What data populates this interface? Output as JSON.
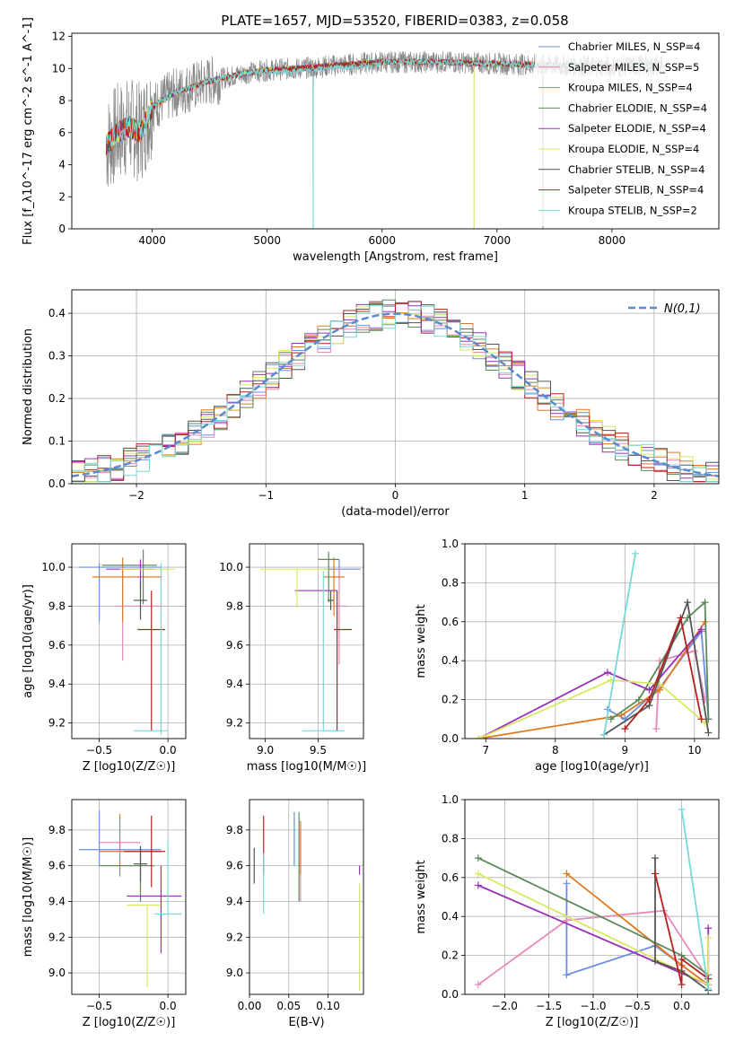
{
  "title": "PLATE=1657, MJD=53520, FIBERID=0383, z=0.058",
  "colors": {
    "models": [
      "#6a8ee0",
      "#e888b8",
      "#e07a20",
      "#5a8a5a",
      "#9a30b8",
      "#d8e860",
      "#555555",
      "#b82020",
      "#78d8d8"
    ],
    "gaussian": "#5a8ad0",
    "data": "#888888"
  },
  "chart_data": [
    {
      "id": "spectrum",
      "type": "line",
      "xlabel": "wavelength [Angstrom, rest frame]",
      "ylabel": "Flux [f_λ10^-17 erg cm^-2 s^-1 A^-1]",
      "xlim": [
        3300,
        8930
      ],
      "ylim": [
        0,
        12.2
      ],
      "xticks": [
        4000,
        5000,
        6000,
        7000,
        8000
      ],
      "yticks": [
        0,
        2,
        4,
        6,
        8,
        10,
        12
      ],
      "grid": false,
      "legend_position": "right",
      "legend": [
        "Chabrier MILES, N_SSP=4",
        "Salpeter MILES, N_SSP=5",
        "Kroupa MILES, N_SSP=4",
        "Chabrier ELODIE, N_SSP=4",
        "Salpeter ELODIE, N_SSP=4",
        "Kroupa ELODIE, N_SSP=4",
        "Chabrier STELIB, N_SSP=4",
        "Salpeter STELIB, N_SSP=4",
        "Kroupa STELIB, N_SSP=2"
      ],
      "continuum": {
        "x": [
          3600,
          3700,
          3800,
          3900,
          4000,
          4200,
          4500,
          4800,
          5000,
          5300,
          5600,
          6000,
          6500,
          7000,
          7500,
          8000,
          8400
        ],
        "y": [
          5.2,
          6.0,
          6.4,
          6.0,
          7.6,
          8.5,
          9.2,
          9.7,
          9.9,
          10.0,
          10.2,
          10.4,
          10.4,
          10.3,
          10.2,
          10.1,
          10.2
        ]
      }
    },
    {
      "id": "residuals",
      "type": "histogram",
      "xlabel": "(data-model)/error",
      "ylabel": "Normed distribution",
      "xlim": [
        -2.5,
        2.5
      ],
      "ylim": [
        0,
        0.455
      ],
      "xticks": [
        -2,
        -1,
        0,
        1,
        2
      ],
      "yticks": [
        0.0,
        0.1,
        0.2,
        0.3,
        0.4
      ],
      "grid": true,
      "legend": [
        "N(0,1)"
      ],
      "legend_position": "top-right",
      "bin_width": 0.1,
      "reference": {
        "name": "N(0,1)",
        "mean": 0,
        "sigma": 1
      }
    },
    {
      "id": "age_vs_Z",
      "type": "errorbar",
      "xlabel": "Z [log10(Z/Z☉)]",
      "ylabel": "age  [log10(age/yr)]",
      "xlim": [
        -0.7,
        0.13
      ],
      "ylim": [
        9.12,
        10.12
      ],
      "xticks": [
        -0.5,
        0.0
      ],
      "yticks": [
        9.2,
        9.4,
        9.6,
        9.8,
        10.0
      ],
      "grid": true,
      "points": [
        {
          "x": -0.5,
          "xerr": [
            0.15,
            0.45
          ],
          "y": 10.0,
          "yerr": [
            0.28,
            0.02
          ]
        },
        {
          "x": -0.33,
          "xerr": [
            0.05,
            0.28
          ],
          "y": 9.8,
          "yerr": [
            0.28,
            0.2
          ]
        },
        {
          "x": -0.33,
          "xerr": [
            0.22,
            0.28
          ],
          "y": 9.95,
          "yerr": [
            0.23,
            0.1
          ]
        },
        {
          "x": -0.18,
          "xerr": [
            0.3,
            0.1
          ],
          "y": 10.01,
          "yerr": [
            0.2,
            0.08
          ]
        },
        {
          "x": -0.2,
          "xerr": [
            0.25,
            0.1
          ],
          "y": 9.99,
          "yerr": [
            0.1,
            0.05
          ]
        },
        {
          "x": -0.15,
          "xerr": [
            0.2,
            0.2
          ],
          "y": 9.99,
          "yerr": [
            0.0,
            0.02
          ]
        },
        {
          "x": -0.2,
          "xerr": [
            0.05,
            0.05
          ],
          "y": 9.83,
          "yerr": [
            0.1,
            0.1
          ]
        },
        {
          "x": -0.12,
          "xerr": [
            0.1,
            0.1
          ],
          "y": 9.68,
          "yerr": [
            0.52,
            0.2
          ]
        },
        {
          "x": -0.05,
          "xerr": [
            0.2,
            0.05
          ],
          "y": 9.16,
          "yerr": [
            0.02,
            0.86
          ]
        }
      ]
    },
    {
      "id": "age_vs_mass",
      "type": "errorbar",
      "xlabel": "mass [log10(M/M☉)]",
      "ylabel": "",
      "xlim": [
        8.85,
        9.93
      ],
      "ylim": [
        9.12,
        10.12
      ],
      "xticks": [
        9.0,
        9.5
      ],
      "yticks": [
        9.2,
        9.4,
        9.6,
        9.8,
        10.0
      ],
      "grid": true,
      "points": [
        {
          "x": 9.7,
          "xerr": [
            0.15,
            0.2
          ],
          "y": 9.99,
          "yerr": [
            0.05,
            0.05
          ]
        },
        {
          "x": 9.7,
          "xerr": [
            0.05,
            0.08
          ],
          "y": 9.8,
          "yerr": [
            0.3,
            0.2
          ]
        },
        {
          "x": 9.65,
          "xerr": [
            0.1,
            0.1
          ],
          "y": 9.95,
          "yerr": [
            0.2,
            0.1
          ]
        },
        {
          "x": 9.6,
          "xerr": [
            0.1,
            0.1
          ],
          "y": 10.04,
          "yerr": [
            0.22,
            0.04
          ]
        },
        {
          "x": 9.48,
          "xerr": [
            0.2,
            0.2
          ],
          "y": 9.88,
          "yerr": [
            0.0,
            0.0
          ]
        },
        {
          "x": 9.3,
          "xerr": [
            0.35,
            0.3
          ],
          "y": 9.99,
          "yerr": [
            0.2,
            0.0
          ]
        },
        {
          "x": 9.62,
          "xerr": [
            0.03,
            0.03
          ],
          "y": 9.83,
          "yerr": [
            0.05,
            0.05
          ]
        },
        {
          "x": 9.68,
          "xerr": [
            0.03,
            0.14
          ],
          "y": 9.68,
          "yerr": [
            0.52,
            0.2
          ]
        },
        {
          "x": 9.55,
          "xerr": [
            0.2,
            0.2
          ],
          "y": 9.16,
          "yerr": [
            0.0,
            0.82
          ]
        }
      ]
    },
    {
      "id": "weight_vs_age",
      "type": "line",
      "xlabel": "age  [log10(age/yr)]",
      "ylabel": "mass weight",
      "xlim": [
        6.7,
        10.35
      ],
      "ylim": [
        0,
        1
      ],
      "xticks": [
        7,
        8,
        9,
        10
      ],
      "yticks": [
        0.0,
        0.2,
        0.4,
        0.6,
        0.8,
        1.0
      ],
      "grid": true,
      "series": [
        {
          "x": [
            8.75,
            9.0,
            9.5,
            10.1,
            10.2
          ],
          "y": [
            0.15,
            0.1,
            0.26,
            0.55,
            0.1
          ]
        },
        {
          "x": [
            9.45,
            9.5,
            10.0,
            10.15
          ],
          "y": [
            0.05,
            0.4,
            0.45,
            0.2
          ]
        },
        {
          "x": [
            6.9,
            8.95,
            9.5,
            10.15
          ],
          "y": [
            0.0,
            0.12,
            0.25,
            0.6
          ]
        },
        {
          "x": [
            8.8,
            9.2,
            9.9,
            10.15,
            10.2
          ],
          "y": [
            0.1,
            0.2,
            0.62,
            0.7,
            0.1
          ]
        },
        {
          "x": [
            6.9,
            8.75,
            9.35,
            10.1
          ],
          "y": [
            0.0,
            0.34,
            0.25,
            0.56
          ]
        },
        {
          "x": [
            6.9,
            8.8,
            9.5,
            10.15
          ],
          "y": [
            0.0,
            0.3,
            0.28,
            0.08
          ]
        },
        {
          "x": [
            8.7,
            9.35,
            9.9,
            10.2
          ],
          "y": [
            0.02,
            0.17,
            0.7,
            0.03
          ]
        },
        {
          "x": [
            9.0,
            9.35,
            9.8,
            10.1
          ],
          "y": [
            0.05,
            0.2,
            0.62,
            0.1
          ]
        },
        {
          "x": [
            8.7,
            9.15
          ],
          "y": [
            0.02,
            0.95
          ]
        }
      ]
    },
    {
      "id": "mass_vs_Z",
      "type": "errorbar",
      "xlabel": "Z [log10(Z/Z☉)]",
      "ylabel": "mass [log10(M/M☉)]",
      "xlim": [
        -0.7,
        0.13
      ],
      "ylim": [
        8.88,
        9.97
      ],
      "xticks": [
        -0.5,
        0.0
      ],
      "yticks": [
        9.0,
        9.2,
        9.4,
        9.6,
        9.8
      ],
      "grid": true,
      "points": [
        {
          "x": -0.5,
          "xerr": [
            0.15,
            0.45
          ],
          "y": 9.69,
          "yerr": [
            0.09,
            0.22
          ]
        },
        {
          "x": -0.3,
          "xerr": [
            0.2,
            0.1
          ],
          "y": 9.73,
          "yerr": [
            0.0,
            0.0
          ]
        },
        {
          "x": -0.35,
          "xerr": [
            0.15,
            0.3
          ],
          "y": 9.68,
          "yerr": [
            0.14,
            0.21
          ]
        },
        {
          "x": -0.2,
          "xerr": [
            0.3,
            0.1
          ],
          "y": 9.6,
          "yerr": [
            0.2,
            0.1
          ]
        },
        {
          "x": -0.05,
          "xerr": [
            0.25,
            0.15
          ],
          "y": 9.43,
          "yerr": [
            0.32,
            0.17
          ]
        },
        {
          "x": -0.15,
          "xerr": [
            0.15,
            0.1
          ],
          "y": 9.38,
          "yerr": [
            0.46,
            0.0
          ]
        },
        {
          "x": -0.2,
          "xerr": [
            0.05,
            0.05
          ],
          "y": 9.61,
          "yerr": [
            0.1,
            0.1
          ]
        },
        {
          "x": -0.12,
          "xerr": [
            0.2,
            0.1
          ],
          "y": 9.68,
          "yerr": [
            0.2,
            0.2
          ]
        },
        {
          "x": 0.0,
          "xerr": [
            0.1,
            0.1
          ],
          "y": 9.33,
          "yerr": [
            0.0,
            0.42
          ]
        }
      ]
    },
    {
      "id": "mass_vs_ebv",
      "type": "errorbar",
      "xlabel": "E(B-V)",
      "ylabel": "",
      "xlim": [
        0.0,
        0.145
      ],
      "ylim": [
        8.88,
        9.97
      ],
      "xticks": [
        0.0,
        0.05,
        0.1
      ],
      "yticks": [
        9.0,
        9.2,
        9.4,
        9.6,
        9.8
      ],
      "grid": true,
      "points": [
        {
          "x": 0.057,
          "y": 9.75,
          "yerr": [
            0.15,
            0.15
          ]
        },
        {
          "x": 0.065,
          "y": 9.6,
          "yerr": [
            0.2,
            0.2
          ]
        },
        {
          "x": 0.065,
          "y": 9.8,
          "yerr": [
            0.25,
            0.05
          ]
        },
        {
          "x": 0.063,
          "y": 9.6,
          "yerr": [
            0.2,
            0.3
          ]
        },
        {
          "x": 0.14,
          "y": 9.6,
          "yerr": [
            0.05,
            0.0
          ]
        },
        {
          "x": 0.14,
          "y": 9.2,
          "yerr": [
            0.3,
            0.3
          ]
        },
        {
          "x": 0.006,
          "y": 9.6,
          "yerr": [
            0.1,
            0.1
          ]
        },
        {
          "x": 0.018,
          "y": 9.7,
          "yerr": [
            0.15,
            0.18
          ]
        },
        {
          "x": 0.018,
          "y": 9.5,
          "yerr": [
            0.17,
            0.17
          ]
        }
      ]
    },
    {
      "id": "weight_vs_Z",
      "type": "line",
      "xlabel": "Z [log10(Z/Z☉)]",
      "ylabel": "mass weight",
      "xlim": [
        -2.45,
        0.42
      ],
      "ylim": [
        0,
        1
      ],
      "xticks": [
        -2.0,
        -1.5,
        -1.0,
        -0.5,
        0.0
      ],
      "yticks": [
        0.0,
        0.2,
        0.4,
        0.6,
        0.8,
        1.0
      ],
      "grid": true,
      "series": [
        {
          "x": [
            -1.3,
            -1.3,
            -0.3,
            0.3
          ],
          "y": [
            0.57,
            0.1,
            0.25,
            0.05
          ]
        },
        {
          "x": [
            -2.3,
            -1.3,
            -0.2,
            0.3
          ],
          "y": [
            0.05,
            0.38,
            0.43,
            0.08
          ]
        },
        {
          "x": [
            -1.3,
            0.0,
            0.3
          ],
          "y": [
            0.62,
            0.15,
            0.05
          ]
        },
        {
          "x": [
            -2.3,
            0.0,
            0.3,
            0.3
          ],
          "y": [
            0.7,
            0.2,
            0.1,
            0.05
          ]
        },
        {
          "x": [
            -2.3,
            0.3,
            0.3
          ],
          "y": [
            0.56,
            0.05,
            0.34
          ]
        },
        {
          "x": [
            -2.3,
            0.3,
            0.3
          ],
          "y": [
            0.62,
            0.05,
            0.29
          ]
        },
        {
          "x": [
            -0.3,
            -0.3,
            0.0,
            0.3
          ],
          "y": [
            0.7,
            0.17,
            0.12,
            0.02
          ]
        },
        {
          "x": [
            -0.3,
            0.0,
            0.0,
            0.3
          ],
          "y": [
            0.62,
            0.05,
            0.18,
            0.08
          ]
        },
        {
          "x": [
            0.0,
            0.3
          ],
          "y": [
            0.95,
            0.03
          ]
        }
      ]
    }
  ]
}
